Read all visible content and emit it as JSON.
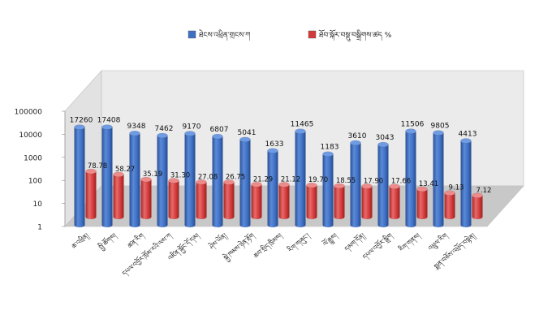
{
  "chart_data": {
    "type": "bar",
    "subtype": "3d-clustered-column",
    "y_scale": "log",
    "ylim": [
      1,
      100000
    ],
    "y_ticks": [
      1,
      10,
      100,
      1000,
      10000,
      100000
    ],
    "y_tick_labels": [
      "1",
      "10",
      "100",
      "1000",
      "10000",
      "100000"
    ],
    "grid": false,
    "legend_position": "top",
    "categories": [
      "ཆ་འཕྲིན།",
      "སྤྱི་ཚོགས།",
      "ཚན་རིག",
      "དཔལ་འབྱོར་ཁྲོམ་རའི་ལས་ཀ",
      "འཛིན་སྐྱོང་དོ་དམ།",
      "ཤེས་ཡོན།",
      "སྐྱེ་ཁམས་ཉེན་རྟོག",
      "ཆབ་སྲིད་ཁྲིམས།",
      "རིག་གཞུང་།",
      "ལོ་རྒྱུས།",
      "དམག་དོན།",
      "དཔལ་འབྱོར་སྒྲིག",
      "རིག་གནས།",
      "འཕྲུལ་རིག",
      "སྨན་བཅོས་འཕྲོད་བསྟེན།"
    ],
    "series": [
      {
        "name": "ཐེངས་འཕྲིན་གྲངས་ཀ",
        "color": "#3f6fc3",
        "values": [
          17260,
          17408,
          9348,
          7462,
          9170,
          6807,
          5041,
          1633,
          11465,
          1183,
          3610,
          3043,
          11506,
          9805,
          4413
        ],
        "labels": [
          "17260",
          "17408",
          "9348",
          "7462",
          "9170",
          "6807",
          "5041",
          "1633",
          "11465",
          "1183",
          "3610",
          "3043",
          "11506",
          "9805",
          "4413"
        ]
      },
      {
        "name": "ཐོབ་སྐོར་བསྡུ་བསྒྲིགས་ཚད %",
        "color": "#d33b3b",
        "values": [
          78.78,
          58.27,
          35.19,
          31.3,
          27.08,
          26.75,
          21.29,
          21.12,
          19.7,
          18.55,
          17.9,
          17.66,
          13.41,
          9.13,
          7.12
        ],
        "labels": [
          "78.78",
          "58.27",
          "35.19",
          "31.30",
          "27.08",
          "26.75",
          "21.29",
          "21.12",
          "19.70",
          "18.55",
          "17.90",
          "17.66",
          "13.41",
          "9.13",
          "7.12"
        ]
      }
    ]
  },
  "colors": {
    "back_wall": "#ebebeb",
    "floor": "#c8c8c8",
    "wall_edge": "#bdbdbd"
  }
}
